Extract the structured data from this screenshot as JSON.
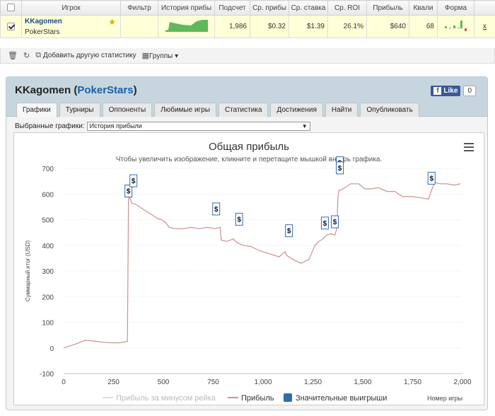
{
  "grid": {
    "headers": [
      "Игрок",
      "Фильтр",
      "История прибы",
      "Подсчет",
      "Ср. прибы",
      "Ср. ставка",
      "Ср. ROI",
      "Прибыль",
      "Квали",
      "Форма"
    ],
    "row": {
      "player": "KKagomen",
      "site": "PokerStars",
      "count": "1,986",
      "avg_profit": "$0.32",
      "avg_stake": "$1.39",
      "avg_roi": "26.1%",
      "profit": "$640",
      "quali": "68",
      "close": "x"
    }
  },
  "toolbar": {
    "add_stat": "Добавить другую статистику",
    "groups": "Группы"
  },
  "panel": {
    "player": "KKagomen",
    "site": "PokerStars",
    "like": "Like",
    "like_count": "0",
    "tabs": [
      "Графики",
      "Турниры",
      "Оппоненты",
      "Любимые игры",
      "Статистика",
      "Достижения",
      "Найти",
      "Опубликовать"
    ],
    "select_label": "Выбранные графики:",
    "select_value": "История прибыли"
  },
  "colors": {
    "line": "#c9928f",
    "rake_line": "#dddddd",
    "marker": "#2e6db4",
    "accent": "#1a5fa8"
  },
  "chart_data": {
    "type": "line",
    "title": "Общая прибыль",
    "subtitle": "Чтобы увеличить изображение, кликните и перетащите мышкой внутрь графика.",
    "xlabel": "Номер игры",
    "ylabel": "Суммарный итог (USD)",
    "xlim": [
      0,
      2000
    ],
    "ylim": [
      -100,
      700
    ],
    "x_ticks": [
      "0",
      "250",
      "500",
      "750",
      "1,000",
      "1,250",
      "1,500",
      "1,750",
      "2,000"
    ],
    "y_ticks": [
      "700",
      "600",
      "500",
      "400",
      "300",
      "200",
      "100",
      "0",
      "-100"
    ],
    "grid": true,
    "legend": [
      "Прибыль за минусом рейка",
      "Прибыль",
      "Значительные выигрыши"
    ],
    "series": [
      {
        "name": "Прибыль",
        "x": [
          0,
          20,
          60,
          110,
          150,
          200,
          240,
          280,
          320,
          325,
          330,
          340,
          360,
          380,
          410,
          440,
          470,
          490,
          510,
          530,
          560,
          600,
          640,
          680,
          720,
          760,
          785,
          790,
          820,
          850,
          870,
          900,
          940,
          980,
          1000,
          1040,
          1080,
          1110,
          1120,
          1150,
          1190,
          1230,
          1260,
          1280,
          1300,
          1320,
          1340,
          1360,
          1370,
          1375,
          1380,
          1390,
          1410,
          1440,
          1480,
          1510,
          1540,
          1580,
          1620,
          1660,
          1700,
          1750,
          1790,
          1830,
          1840,
          1860,
          1890,
          1920,
          1960,
          1990
        ],
        "y": [
          0,
          5,
          15,
          30,
          27,
          22,
          20,
          20,
          25,
          580,
          590,
          565,
          560,
          550,
          535,
          520,
          505,
          500,
          490,
          470,
          465,
          465,
          470,
          465,
          470,
          465,
          470,
          420,
          415,
          425,
          410,
          400,
          395,
          380,
          375,
          365,
          355,
          375,
          360,
          345,
          330,
          345,
          400,
          415,
          425,
          440,
          445,
          440,
          465,
          580,
          615,
          615,
          625,
          640,
          640,
          620,
          620,
          625,
          610,
          610,
          590,
          590,
          585,
          580,
          605,
          645,
          640,
          640,
          635,
          640
        ]
      },
      {
        "name": "Прибыль за минусом рейка",
        "x": [
          0,
          2000
        ],
        "y": [
          0,
          0
        ]
      }
    ],
    "significant_wins": [
      [
        325,
        580
      ],
      [
        350,
        620
      ],
      [
        765,
        510
      ],
      [
        880,
        470
      ],
      [
        1130,
        425
      ],
      [
        1310,
        455
      ],
      [
        1360,
        460
      ],
      [
        1385,
        690
      ],
      [
        1385,
        670
      ],
      [
        1845,
        630
      ]
    ]
  }
}
